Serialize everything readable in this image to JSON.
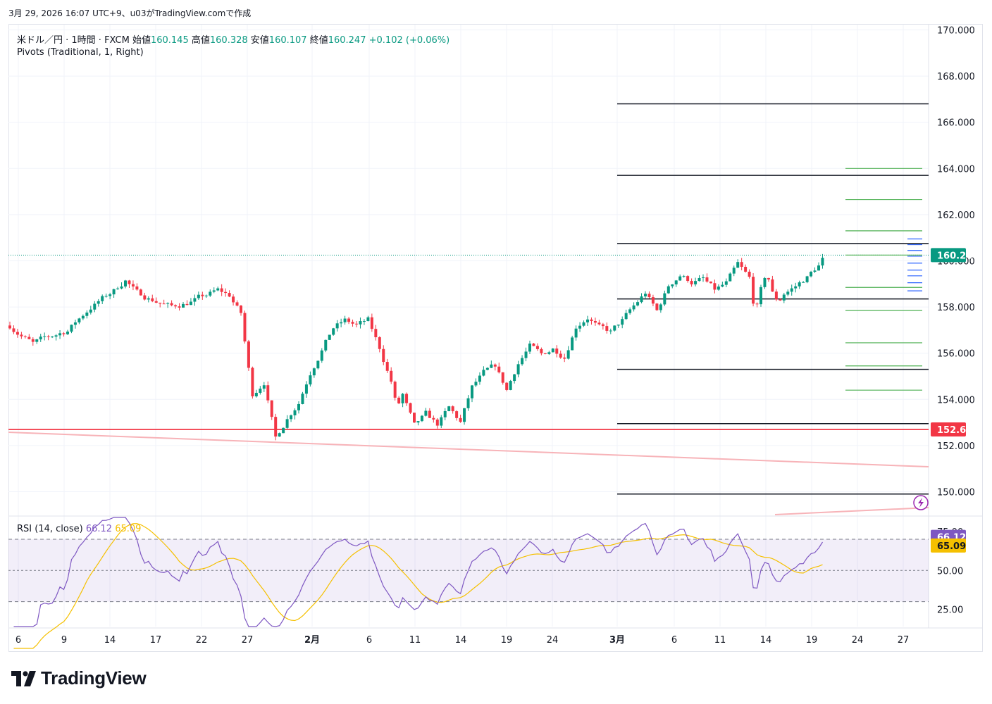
{
  "header": {
    "timestamp": "3月 29, 2026 16:07 UTC+9、u03がTradingView.comで作成"
  },
  "legend": {
    "symbol": "米ドル／円 · 1時間 · FXCM",
    "open_label": "始値",
    "open": "160.145",
    "high_label": "高値",
    "high": "160.328",
    "low_label": "安値",
    "low": "160.107",
    "close_label": "終値",
    "close": "160.247",
    "change": "+0.102 (+0.06%)",
    "indicator": "Pivots (Traditional, 1, Right)"
  },
  "rsi_legend": {
    "label": "RSI (14, close)",
    "rsi": "66.12",
    "ma": "65.09"
  },
  "brand": {
    "name": "TradingView"
  },
  "colors": {
    "up": "#089981",
    "down": "#f23645",
    "pivot_monthly": "#131722",
    "pivot_weekly": "#4caf50",
    "pivot_daily": "#2962ff",
    "rsi": "#7e57c2",
    "rsi_ma": "#f5c000",
    "support": "#f23645",
    "trend": "#f7b3b8"
  },
  "chart_data": [
    {
      "type": "candlestick",
      "symbol": "USDJPY",
      "timeframe": "1時間",
      "y_axis_ticks": [
        "170.000",
        "168.000",
        "166.000",
        "164.000",
        "162.000",
        "160.000",
        "158.000",
        "156.000",
        "154.000",
        "152.000",
        "150.000"
      ],
      "y_axis_range": [
        149,
        170
      ],
      "x_axis_ticks": [
        "6",
        "9",
        "14",
        "17",
        "22",
        "27",
        "2月",
        "6",
        "11",
        "14",
        "19",
        "24",
        "3月",
        "6",
        "11",
        "14",
        "19",
        "24",
        "27"
      ],
      "price_path": [
        {
          "d": 0,
          "p": 157.2
        },
        {
          "d": 1,
          "p": 156.8
        },
        {
          "d": 2,
          "p": 156.4
        },
        {
          "d": 3,
          "p": 156.6
        },
        {
          "d": 5,
          "p": 157.0
        },
        {
          "d": 7,
          "p": 158.0
        },
        {
          "d": 9,
          "p": 158.7
        },
        {
          "d": 10,
          "p": 159.2
        },
        {
          "d": 11,
          "p": 158.6
        },
        {
          "d": 12,
          "p": 158.4
        },
        {
          "d": 14,
          "p": 158.0
        },
        {
          "d": 16,
          "p": 158.3
        },
        {
          "d": 18,
          "p": 158.7
        },
        {
          "d": 19,
          "p": 158.5
        },
        {
          "d": 20,
          "p": 157.7
        },
        {
          "d": 20.6,
          "p": 155.5
        },
        {
          "d": 21,
          "p": 154.2
        },
        {
          "d": 22,
          "p": 154.8
        },
        {
          "d": 23,
          "p": 152.3
        },
        {
          "d": 24,
          "p": 153.2
        },
        {
          "d": 25,
          "p": 153.9
        },
        {
          "d": 26,
          "p": 155.2
        },
        {
          "d": 27,
          "p": 156.2
        },
        {
          "d": 28,
          "p": 157.1
        },
        {
          "d": 29,
          "p": 157.4
        },
        {
          "d": 30,
          "p": 157.2
        },
        {
          "d": 31,
          "p": 157.4
        },
        {
          "d": 32,
          "p": 156.2
        },
        {
          "d": 33,
          "p": 154.8
        },
        {
          "d": 33.5,
          "p": 153.6
        },
        {
          "d": 34,
          "p": 154.2
        },
        {
          "d": 35,
          "p": 152.8
        },
        {
          "d": 36,
          "p": 153.3
        },
        {
          "d": 37,
          "p": 152.9
        },
        {
          "d": 38,
          "p": 153.6
        },
        {
          "d": 39,
          "p": 153.0
        },
        {
          "d": 40,
          "p": 154.5
        },
        {
          "d": 41,
          "p": 155.1
        },
        {
          "d": 42,
          "p": 155.4
        },
        {
          "d": 43,
          "p": 154.4
        },
        {
          "d": 44,
          "p": 155.6
        },
        {
          "d": 45,
          "p": 156.3
        },
        {
          "d": 46,
          "p": 155.9
        },
        {
          "d": 47,
          "p": 156.2
        },
        {
          "d": 48,
          "p": 155.9
        },
        {
          "d": 49,
          "p": 157.2
        },
        {
          "d": 50,
          "p": 157.6
        },
        {
          "d": 51,
          "p": 157.1
        },
        {
          "d": 52,
          "p": 156.9
        },
        {
          "d": 53,
          "p": 157.4
        },
        {
          "d": 54,
          "p": 158.0
        },
        {
          "d": 55,
          "p": 158.6
        },
        {
          "d": 56,
          "p": 157.8
        },
        {
          "d": 57,
          "p": 158.9
        },
        {
          "d": 58,
          "p": 159.4
        },
        {
          "d": 59,
          "p": 159.1
        },
        {
          "d": 60,
          "p": 159.2
        },
        {
          "d": 61,
          "p": 158.7
        },
        {
          "d": 62,
          "p": 159.0
        },
        {
          "d": 63,
          "p": 159.8
        },
        {
          "d": 64,
          "p": 159.2
        },
        {
          "d": 64.5,
          "p": 157.7
        },
        {
          "d": 65,
          "p": 158.7
        },
        {
          "d": 65.5,
          "p": 159.5
        },
        {
          "d": 66,
          "p": 158.6
        },
        {
          "d": 66.5,
          "p": 158.2
        },
        {
          "d": 67,
          "p": 158.6
        },
        {
          "d": 68,
          "p": 158.9
        },
        {
          "d": 69,
          "p": 159.3
        },
        {
          "d": 70,
          "p": 159.8
        },
        {
          "d": 70.6,
          "p": 160.25
        }
      ],
      "pivots": [
        {
          "set": "monthly",
          "levels": [
            166.8,
            163.7,
            160.75,
            158.35,
            155.3,
            152.95,
            149.9
          ]
        },
        {
          "set": "weekly",
          "levels": [
            164.0,
            162.65,
            161.3,
            160.25,
            158.85,
            157.85,
            156.45,
            155.45,
            154.4
          ]
        },
        {
          "set": "daily",
          "levels": [
            160.95,
            160.7,
            160.45,
            160.2,
            159.9,
            159.6,
            159.35,
            159.05,
            158.7
          ]
        }
      ],
      "horizontal_lines": [
        {
          "price": "152.699"
        }
      ],
      "last_price": "160.247"
    },
    {
      "type": "line",
      "name": "RSI (14, close)",
      "y_axis_ticks": [
        "75.00",
        "50.00",
        "25.00"
      ],
      "ylim": [
        14,
        84
      ],
      "bands": [
        70,
        50,
        30
      ],
      "current": {
        "rsi": "66.12",
        "ma": "65.09"
      }
    }
  ]
}
